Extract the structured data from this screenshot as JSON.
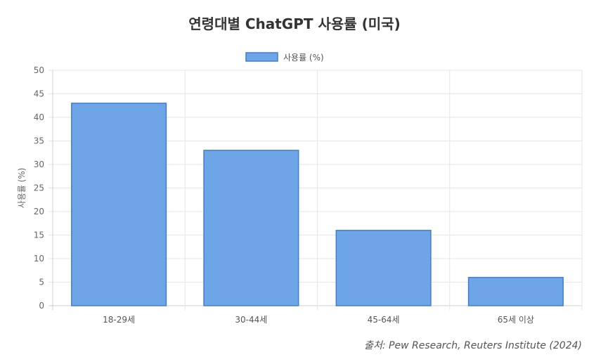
{
  "chart_data": {
    "type": "bar",
    "title": "연령대별 ChatGPT 사용률 (미국)",
    "categories": [
      "18-29세",
      "30-44세",
      "45-64세",
      "65세 이상"
    ],
    "series": [
      {
        "name": "사용률 (%)",
        "values": [
          43,
          33,
          16,
          6
        ]
      }
    ],
    "xlabel": "",
    "ylabel": "사용률 (%)",
    "ylim": [
      0,
      50
    ],
    "yticks": [
      0,
      5,
      10,
      15,
      20,
      25,
      30,
      35,
      40,
      45,
      50
    ],
    "grid": true,
    "legend_position": "top-center",
    "bar_color": "#6ea5e6",
    "bar_border_color": "#3f7fcf"
  },
  "source": "출처: Pew Research, Reuters Institute (2024)"
}
